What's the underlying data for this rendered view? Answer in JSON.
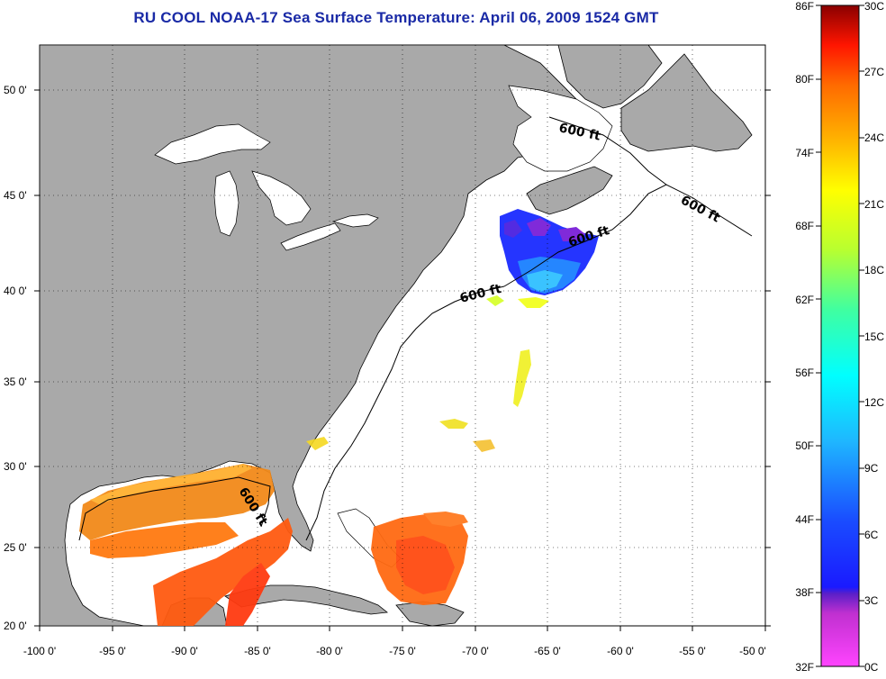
{
  "title": "RU COOL  NOAA-17  Sea Surface Temperature:  April 06, 2009 1524 GMT",
  "axes": {
    "lon_labels": [
      "-100 0'",
      "-95 0'",
      "-90 0'",
      "-85 0'",
      "-80 0'",
      "-75 0'",
      "-70 0'",
      "-65 0'",
      "-60 0'",
      "-55 0'",
      "-50 0'"
    ],
    "lat_labels": [
      "50 0'",
      "45 0'",
      "40 0'",
      "35 0'",
      "30 0'",
      "25 0'",
      "20 0'"
    ]
  },
  "isobath_labels": [
    "600 ft",
    "600 ft",
    "600 ft",
    "600 ft",
    "600 ft"
  ],
  "colorbar": {
    "fahrenheit": [
      "86F",
      "80F",
      "74F",
      "68F",
      "62F",
      "56F",
      "50F",
      "44F",
      "38F",
      "32F"
    ],
    "celsius": [
      "30C",
      "27C",
      "24C",
      "21C",
      "18C",
      "15C",
      "12C",
      "9C",
      "6C",
      "3C",
      "0C"
    ]
  },
  "colors": {
    "land": "#a9a9a9",
    "ocean": "#ffffff",
    "title": "#1a2aa6"
  }
}
